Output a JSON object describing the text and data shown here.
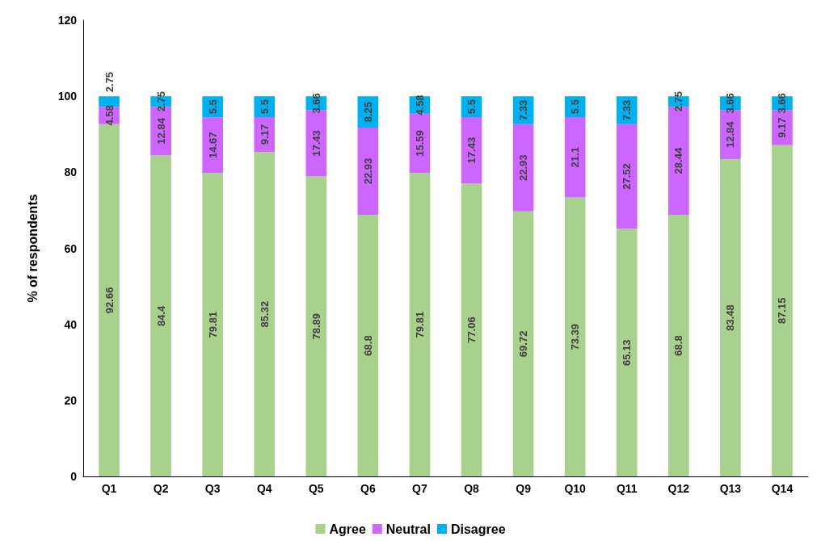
{
  "chart_data": {
    "type": "bar",
    "stacked": true,
    "ylabel": "% of respondents",
    "categories": [
      "Q1",
      "Q2",
      "Q3",
      "Q4",
      "Q5",
      "Q6",
      "Q7",
      "Q8",
      "Q9",
      "Q10",
      "Q11",
      "Q12",
      "Q13",
      "Q14"
    ],
    "series": [
      {
        "name": "Agree",
        "color": "#a9d18e",
        "values": [
          92.66,
          84.4,
          79.81,
          85.32,
          78.89,
          68.8,
          79.81,
          77.06,
          69.72,
          73.39,
          65.13,
          68.8,
          83.48,
          87.15
        ]
      },
      {
        "name": "Neutral",
        "color": "#cc66ff",
        "values": [
          4.58,
          12.84,
          14.67,
          9.17,
          17.43,
          22.93,
          15.59,
          17.43,
          22.93,
          21.1,
          27.52,
          28.44,
          12.84,
          9.17
        ]
      },
      {
        "name": "Disagree",
        "color": "#00b0f0",
        "values": [
          2.75,
          2.75,
          5.5,
          5.5,
          3.66,
          8.25,
          4.58,
          5.5,
          7.33,
          5.5,
          7.33,
          2.75,
          3.66,
          3.66
        ]
      }
    ],
    "ylim": [
      0,
      120
    ],
    "yticks": [
      0,
      20,
      40,
      60,
      80,
      100,
      120
    ],
    "grid": false,
    "legend": "bottom",
    "data_labels": true
  }
}
